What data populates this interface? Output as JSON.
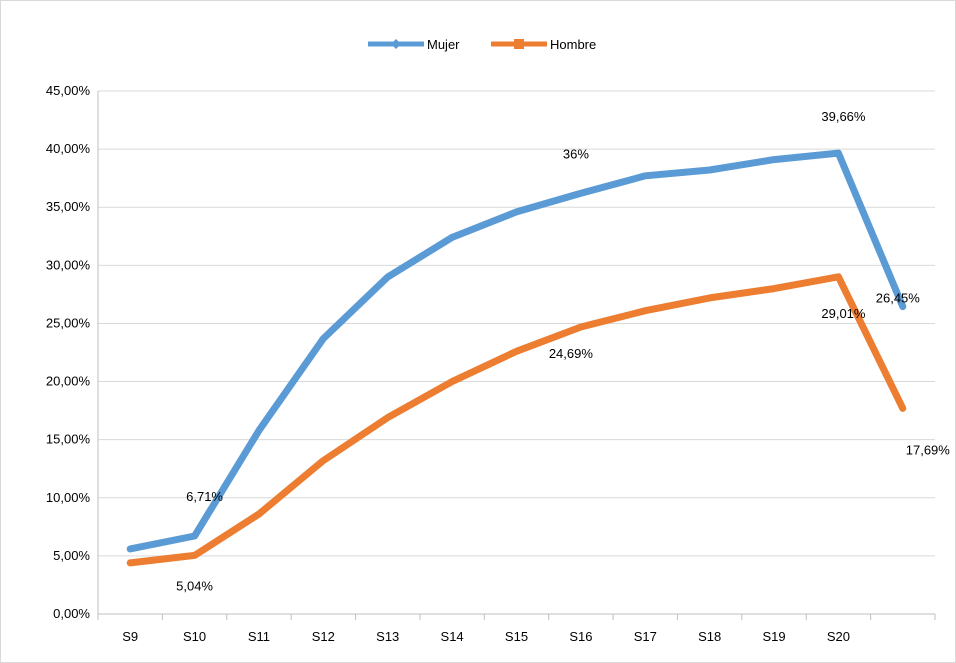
{
  "chart_data": {
    "type": "line",
    "title": "",
    "xlabel": "",
    "ylabel": "",
    "categories": [
      "S9",
      "S10",
      "S11",
      "S12",
      "S13",
      "S14",
      "S15",
      "S16",
      "S17",
      "S18",
      "S19",
      "S20",
      ""
    ],
    "ylim": [
      0,
      45
    ],
    "ytick_step": 5,
    "ytick_labels": [
      "0,00%",
      "5,00%",
      "10,00%",
      "15,00%",
      "20,00%",
      "25,00%",
      "30,00%",
      "35,00%",
      "40,00%",
      "45,00%"
    ],
    "grid": true,
    "legend_position": "top",
    "series": [
      {
        "name": "Mujer",
        "color": "#5B9BD5",
        "marker": "diamond",
        "values": [
          5.6,
          6.71,
          15.8,
          23.7,
          29.0,
          32.4,
          34.6,
          36.2,
          37.7,
          38.2,
          39.1,
          39.66,
          26.45
        ],
        "data_labels": [
          {
            "index": 1,
            "text": "6,71%"
          },
          {
            "index": 7,
            "text": "36%"
          },
          {
            "index": 11,
            "text": "39,66%"
          },
          {
            "index": 12,
            "text": "26,45%"
          }
        ]
      },
      {
        "name": "Hombre",
        "color": "#ED7D31",
        "marker": "square",
        "values": [
          4.4,
          5.04,
          8.6,
          13.2,
          16.9,
          20.0,
          22.6,
          24.69,
          26.1,
          27.2,
          28.0,
          29.01,
          17.69
        ],
        "data_labels": [
          {
            "index": 1,
            "text": "5,04%"
          },
          {
            "index": 7,
            "text": "24,69%"
          },
          {
            "index": 11,
            "text": "29,01%"
          },
          {
            "index": 12,
            "text": "17,69%"
          }
        ]
      }
    ]
  },
  "colors": {
    "grid": "#d9d9d9",
    "axis": "#bfbfbf",
    "background": "#ffffff"
  }
}
